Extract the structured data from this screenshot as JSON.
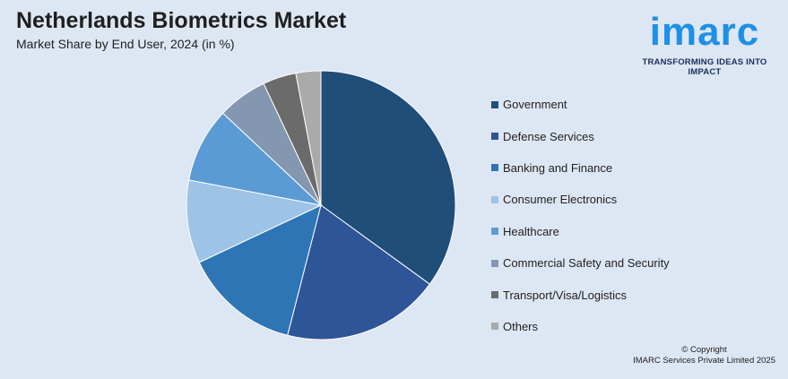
{
  "header": {
    "title": "Netherlands Biometrics Market",
    "subtitle": "Market Share by End User, 2024 (in %)"
  },
  "logo": {
    "brand": "imarc",
    "tagline": "TRANSFORMING IDEAS INTO IMPACT"
  },
  "chart_data": {
    "type": "pie",
    "title": "Netherlands Biometrics Market",
    "subtitle": "Market Share by End User, 2024 (in %)",
    "categories": [
      "Government",
      "Defense Services",
      "Banking and Finance",
      "Consumer Electronics",
      "Healthcare",
      "Commercial Safety and Security",
      "Transport/Visa/Logistics",
      "Others"
    ],
    "values": [
      35,
      19,
      14,
      10,
      9,
      6,
      4,
      3
    ],
    "colors": [
      "#1f4e79",
      "#2e5597",
      "#2e75b6",
      "#9dc3e6",
      "#5b9bd5",
      "#8497b0",
      "#6b6b6b",
      "#aaaaaa"
    ],
    "start_angle_deg": 0,
    "direction": "clockwise",
    "legend_position": "right"
  },
  "footer": {
    "copyright": "© Copyright",
    "company": "IMARC Services Private Limited 2025"
  }
}
